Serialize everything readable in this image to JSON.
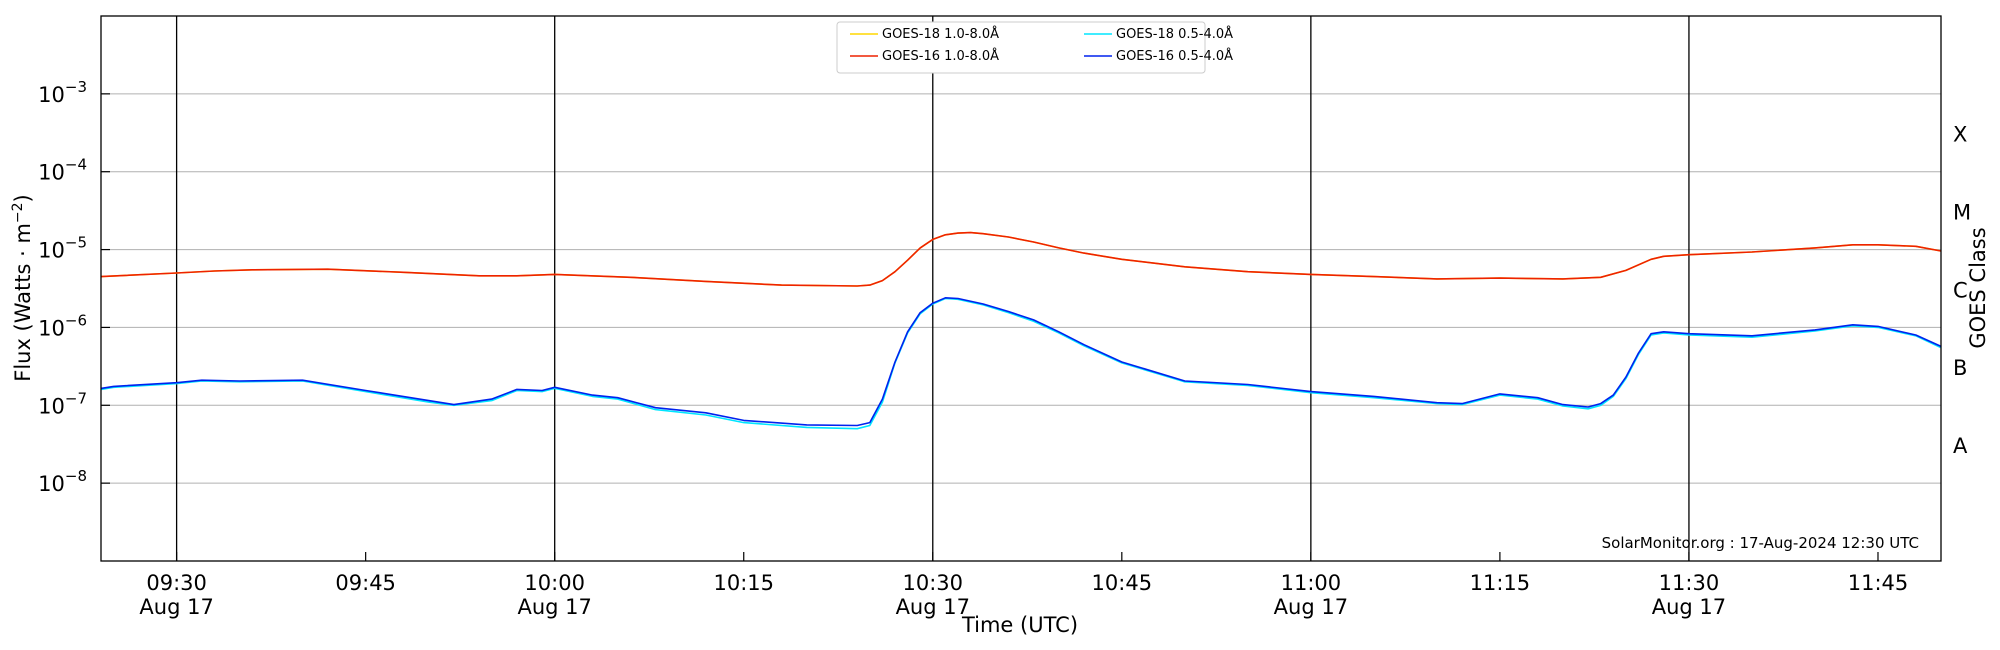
{
  "chart_data": {
    "type": "line",
    "title": "",
    "credit": "SolarMonitor.org : 17-Aug-2024 12:30 UTC",
    "xlabel": "Time (UTC)",
    "ylabel": "Flux (Watts · m",
    "ylabel_sup": "−2",
    "ylabel_close": ")",
    "ylabel_right": "GOES Class",
    "y_scale": "log",
    "ylim": [
      1e-09,
      0.01
    ],
    "xlim": [
      "2024-08-17 09:24",
      "2024-08-17 11:50"
    ],
    "grid": "horizontal",
    "legend_position": "top-center",
    "y_ticks": [
      {
        "value": 1e-08,
        "base": "10",
        "exp": "−8"
      },
      {
        "value": 1e-07,
        "base": "10",
        "exp": "−7"
      },
      {
        "value": 1e-06,
        "base": "10",
        "exp": "−6"
      },
      {
        "value": 1e-05,
        "base": "10",
        "exp": "−5"
      },
      {
        "value": 0.0001,
        "base": "10",
        "exp": "−4"
      },
      {
        "value": 0.001,
        "base": "10",
        "exp": "−3"
      }
    ],
    "x_ticks": [
      {
        "time": "09:30",
        "label": "09:30",
        "date": "Aug 17"
      },
      {
        "time": "09:45",
        "label": "09:45",
        "date": ""
      },
      {
        "time": "10:00",
        "label": "10:00",
        "date": "Aug 17"
      },
      {
        "time": "10:15",
        "label": "10:15",
        "date": ""
      },
      {
        "time": "10:30",
        "label": "10:30",
        "date": "Aug 17"
      },
      {
        "time": "10:45",
        "label": "10:45",
        "date": ""
      },
      {
        "time": "11:00",
        "label": "11:00",
        "date": "Aug 17"
      },
      {
        "time": "11:15",
        "label": "11:15",
        "date": ""
      },
      {
        "time": "11:30",
        "label": "11:30",
        "date": "Aug 17"
      },
      {
        "time": "11:45",
        "label": "11:45",
        "date": ""
      }
    ],
    "vertical_lines": [
      "09:30",
      "10:00",
      "10:30",
      "11:00",
      "11:30"
    ],
    "class_labels": [
      {
        "label": "X",
        "value": 0.0003
      },
      {
        "label": "M",
        "value": 3e-05
      },
      {
        "label": "C",
        "value": 3e-06
      },
      {
        "label": "B",
        "value": 3e-07
      },
      {
        "label": "A",
        "value": 3e-08
      }
    ],
    "series": [
      {
        "name": "GOES-18 1.0-8.0Å",
        "color": "#ffd700",
        "points": [
          [
            "09:24",
            4.5e-06
          ],
          [
            "09:30",
            5e-06
          ],
          [
            "09:33",
            5.3e-06
          ],
          [
            "09:36",
            5.5e-06
          ],
          [
            "09:42",
            5.6e-06
          ],
          [
            "09:48",
            5.1e-06
          ],
          [
            "09:54",
            4.6e-06
          ],
          [
            "09:57",
            4.6e-06
          ],
          [
            "10:00",
            4.8e-06
          ],
          [
            "10:06",
            4.4e-06
          ],
          [
            "10:12",
            3.9e-06
          ],
          [
            "10:18",
            3.5e-06
          ],
          [
            "10:24",
            3.4e-06
          ],
          [
            "10:25",
            3.5e-06
          ],
          [
            "10:26",
            4e-06
          ],
          [
            "10:27",
            5.2e-06
          ],
          [
            "10:28",
            7.3e-06
          ],
          [
            "10:29",
            1.05e-05
          ],
          [
            "10:30",
            1.35e-05
          ],
          [
            "10:31",
            1.55e-05
          ],
          [
            "10:32",
            1.63e-05
          ],
          [
            "10:33",
            1.65e-05
          ],
          [
            "10:34",
            1.6e-05
          ],
          [
            "10:36",
            1.45e-05
          ],
          [
            "10:38",
            1.25e-05
          ],
          [
            "10:40",
            1.05e-05
          ],
          [
            "10:42",
            9e-06
          ],
          [
            "10:45",
            7.5e-06
          ],
          [
            "10:50",
            6e-06
          ],
          [
            "10:55",
            5.2e-06
          ],
          [
            "11:00",
            4.8e-06
          ],
          [
            "11:05",
            4.5e-06
          ],
          [
            "11:10",
            4.2e-06
          ],
          [
            "11:15",
            4.3e-06
          ],
          [
            "11:20",
            4.2e-06
          ],
          [
            "11:23",
            4.4e-06
          ],
          [
            "11:25",
            5.4e-06
          ],
          [
            "11:27",
            7.5e-06
          ],
          [
            "11:28",
            8.2e-06
          ],
          [
            "11:30",
            8.6e-06
          ],
          [
            "11:35",
            9.3e-06
          ],
          [
            "11:40",
            1.05e-05
          ],
          [
            "11:43",
            1.15e-05
          ],
          [
            "11:45",
            1.15e-05
          ],
          [
            "11:48",
            1.1e-05
          ],
          [
            "11:50",
            9.6e-06
          ]
        ]
      },
      {
        "name": "GOES-18 0.5-4.0Å",
        "color": "#00e5ff",
        "points": [
          [
            "09:24",
            1.6e-07
          ],
          [
            "09:25",
            1.7e-07
          ],
          [
            "09:30",
            1.9e-07
          ],
          [
            "09:32",
            2.05e-07
          ],
          [
            "09:35",
            2e-07
          ],
          [
            "09:40",
            2.05e-07
          ],
          [
            "09:45",
            1.5e-07
          ],
          [
            "09:50",
            1.1e-07
          ],
          [
            "09:52",
            1e-07
          ],
          [
            "09:55",
            1.15e-07
          ],
          [
            "09:57",
            1.55e-07
          ],
          [
            "09:59",
            1.5e-07
          ],
          [
            "10:00",
            1.65e-07
          ],
          [
            "10:03",
            1.3e-07
          ],
          [
            "10:05",
            1.2e-07
          ],
          [
            "10:08",
            8.8e-08
          ],
          [
            "10:12",
            7.5e-08
          ],
          [
            "10:15",
            6e-08
          ],
          [
            "10:20",
            5.2e-08
          ],
          [
            "10:24",
            5e-08
          ],
          [
            "10:25",
            5.5e-08
          ],
          [
            "10:26",
            1.1e-07
          ],
          [
            "10:27",
            3.5e-07
          ],
          [
            "10:28",
            8.5e-07
          ],
          [
            "10:29",
            1.5e-06
          ],
          [
            "10:30",
            2e-06
          ],
          [
            "10:31",
            2.35e-06
          ],
          [
            "10:32",
            2.3e-06
          ],
          [
            "10:34",
            1.95e-06
          ],
          [
            "10:36",
            1.55e-06
          ],
          [
            "10:38",
            1.2e-06
          ],
          [
            "10:40",
            8.5e-07
          ],
          [
            "10:42",
            5.8e-07
          ],
          [
            "10:45",
            3.5e-07
          ],
          [
            "10:50",
            2e-07
          ],
          [
            "10:55",
            1.8e-07
          ],
          [
            "11:00",
            1.45e-07
          ],
          [
            "11:05",
            1.25e-07
          ],
          [
            "11:10",
            1.05e-07
          ],
          [
            "11:12",
            1.02e-07
          ],
          [
            "11:15",
            1.35e-07
          ],
          [
            "11:18",
            1.2e-07
          ],
          [
            "11:20",
            9.8e-08
          ],
          [
            "11:22",
            9e-08
          ],
          [
            "11:23",
            1e-07
          ],
          [
            "11:24",
            1.3e-07
          ],
          [
            "11:25",
            2.2e-07
          ],
          [
            "11:26",
            4.5e-07
          ],
          [
            "11:27",
            8e-07
          ],
          [
            "11:28",
            8.5e-07
          ],
          [
            "11:30",
            8e-07
          ],
          [
            "11:35",
            7.5e-07
          ],
          [
            "11:40",
            9e-07
          ],
          [
            "11:43",
            1.05e-06
          ],
          [
            "11:45",
            1e-06
          ],
          [
            "11:48",
            7.8e-07
          ],
          [
            "11:50",
            5.5e-07
          ]
        ]
      },
      {
        "name": "GOES-16 1.0-8.0Å",
        "color": "#ee2200",
        "points": [
          [
            "09:24",
            4.5e-06
          ],
          [
            "09:30",
            5e-06
          ],
          [
            "09:33",
            5.3e-06
          ],
          [
            "09:36",
            5.5e-06
          ],
          [
            "09:42",
            5.6e-06
          ],
          [
            "09:48",
            5.1e-06
          ],
          [
            "09:54",
            4.6e-06
          ],
          [
            "09:57",
            4.6e-06
          ],
          [
            "10:00",
            4.8e-06
          ],
          [
            "10:06",
            4.4e-06
          ],
          [
            "10:12",
            3.9e-06
          ],
          [
            "10:18",
            3.5e-06
          ],
          [
            "10:24",
            3.4e-06
          ],
          [
            "10:25",
            3.5e-06
          ],
          [
            "10:26",
            4e-06
          ],
          [
            "10:27",
            5.2e-06
          ],
          [
            "10:28",
            7.3e-06
          ],
          [
            "10:29",
            1.05e-05
          ],
          [
            "10:30",
            1.35e-05
          ],
          [
            "10:31",
            1.55e-05
          ],
          [
            "10:32",
            1.63e-05
          ],
          [
            "10:33",
            1.65e-05
          ],
          [
            "10:34",
            1.6e-05
          ],
          [
            "10:36",
            1.45e-05
          ],
          [
            "10:38",
            1.25e-05
          ],
          [
            "10:40",
            1.05e-05
          ],
          [
            "10:42",
            9e-06
          ],
          [
            "10:45",
            7.5e-06
          ],
          [
            "10:50",
            6e-06
          ],
          [
            "10:55",
            5.2e-06
          ],
          [
            "11:00",
            4.8e-06
          ],
          [
            "11:05",
            4.5e-06
          ],
          [
            "11:10",
            4.2e-06
          ],
          [
            "11:15",
            4.3e-06
          ],
          [
            "11:20",
            4.2e-06
          ],
          [
            "11:23",
            4.4e-06
          ],
          [
            "11:25",
            5.4e-06
          ],
          [
            "11:27",
            7.5e-06
          ],
          [
            "11:28",
            8.2e-06
          ],
          [
            "11:30",
            8.6e-06
          ],
          [
            "11:35",
            9.3e-06
          ],
          [
            "11:40",
            1.05e-05
          ],
          [
            "11:43",
            1.15e-05
          ],
          [
            "11:45",
            1.15e-05
          ],
          [
            "11:48",
            1.1e-05
          ],
          [
            "11:50",
            9.6e-06
          ]
        ]
      },
      {
        "name": "GOES-16 0.5-4.0Å",
        "color": "#0022ee",
        "points": [
          [
            "09:24",
            1.65e-07
          ],
          [
            "09:25",
            1.75e-07
          ],
          [
            "09:30",
            1.95e-07
          ],
          [
            "09:32",
            2.1e-07
          ],
          [
            "09:35",
            2.05e-07
          ],
          [
            "09:40",
            2.1e-07
          ],
          [
            "09:45",
            1.55e-07
          ],
          [
            "09:50",
            1.15e-07
          ],
          [
            "09:52",
            1.02e-07
          ],
          [
            "09:55",
            1.2e-07
          ],
          [
            "09:57",
            1.6e-07
          ],
          [
            "09:59",
            1.55e-07
          ],
          [
            "10:00",
            1.7e-07
          ],
          [
            "10:03",
            1.35e-07
          ],
          [
            "10:05",
            1.25e-07
          ],
          [
            "10:08",
            9.3e-08
          ],
          [
            "10:12",
            8e-08
          ],
          [
            "10:15",
            6.4e-08
          ],
          [
            "10:20",
            5.6e-08
          ],
          [
            "10:24",
            5.5e-08
          ],
          [
            "10:25",
            6e-08
          ],
          [
            "10:26",
            1.2e-07
          ],
          [
            "10:27",
            3.6e-07
          ],
          [
            "10:28",
            8.8e-07
          ],
          [
            "10:29",
            1.55e-06
          ],
          [
            "10:30",
            2.05e-06
          ],
          [
            "10:31",
            2.4e-06
          ],
          [
            "10:32",
            2.35e-06
          ],
          [
            "10:34",
            2e-06
          ],
          [
            "10:36",
            1.6e-06
          ],
          [
            "10:38",
            1.25e-06
          ],
          [
            "10:40",
            8.8e-07
          ],
          [
            "10:42",
            6e-07
          ],
          [
            "10:45",
            3.6e-07
          ],
          [
            "10:50",
            2.05e-07
          ],
          [
            "10:55",
            1.85e-07
          ],
          [
            "11:00",
            1.5e-07
          ],
          [
            "11:05",
            1.3e-07
          ],
          [
            "11:10",
            1.08e-07
          ],
          [
            "11:12",
            1.05e-07
          ],
          [
            "11:15",
            1.4e-07
          ],
          [
            "11:18",
            1.25e-07
          ],
          [
            "11:20",
            1.02e-07
          ],
          [
            "11:22",
            9.5e-08
          ],
          [
            "11:23",
            1.05e-07
          ],
          [
            "11:24",
            1.35e-07
          ],
          [
            "11:25",
            2.3e-07
          ],
          [
            "11:26",
            4.7e-07
          ],
          [
            "11:27",
            8.3e-07
          ],
          [
            "11:28",
            8.8e-07
          ],
          [
            "11:30",
            8.3e-07
          ],
          [
            "11:35",
            7.8e-07
          ],
          [
            "11:40",
            9.3e-07
          ],
          [
            "11:43",
            1.08e-06
          ],
          [
            "11:45",
            1.03e-06
          ],
          [
            "11:48",
            8e-07
          ],
          [
            "11:50",
            5.7e-07
          ]
        ]
      }
    ],
    "legend": [
      {
        "label": "GOES-18 1.0-8.0Å",
        "color": "#ffd700"
      },
      {
        "label": "GOES-18 0.5-4.0Å",
        "color": "#00e5ff"
      },
      {
        "label": "GOES-16 1.0-8.0Å",
        "color": "#ee2200"
      },
      {
        "label": "GOES-16 0.5-4.0Å",
        "color": "#0022ee"
      }
    ]
  }
}
